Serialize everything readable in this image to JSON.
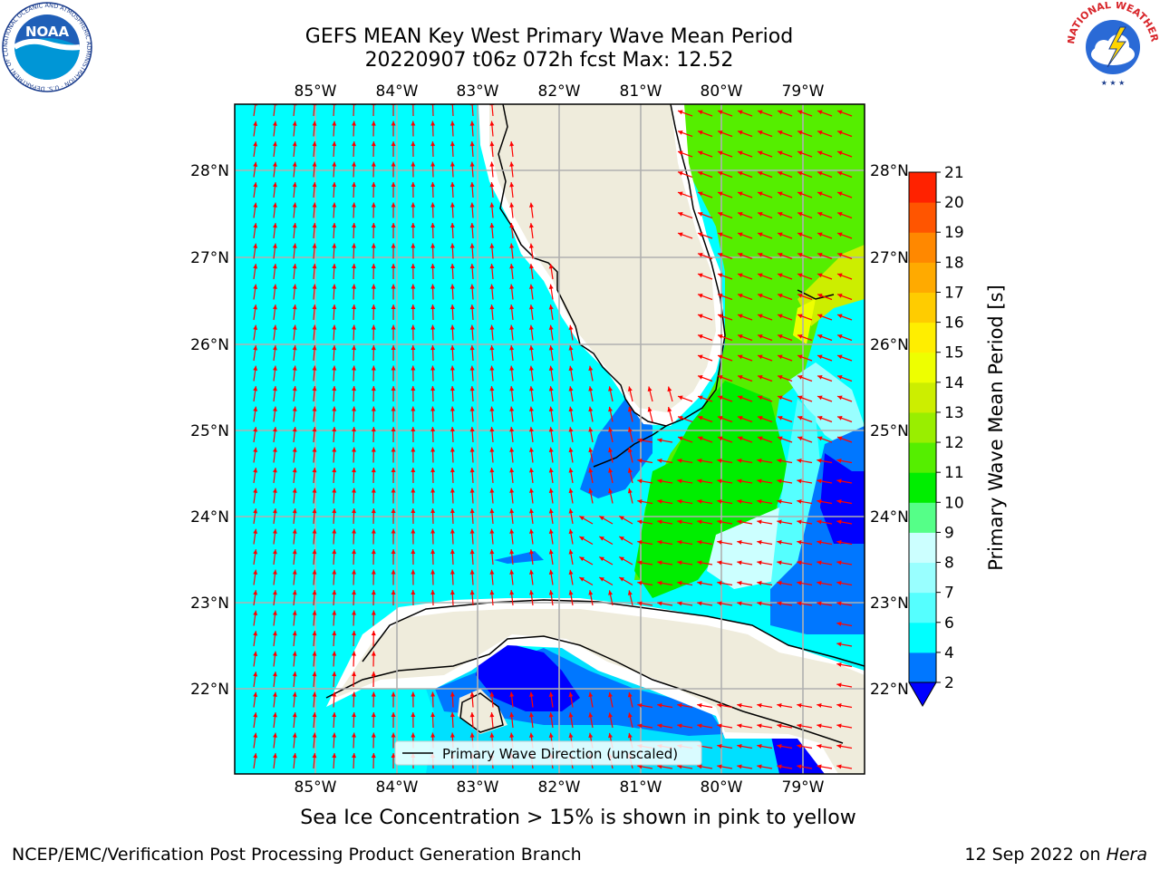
{
  "header": {
    "title_line1": "GEFS MEAN Key West Primary Wave Mean Period",
    "title_line2": "20220907 t06z 072h fcst   Max: 12.52"
  },
  "logos": {
    "noaa_text": "NOAA",
    "noaa_ring": "NATIONAL OCEANIC AND ATMOSPHERIC ADMINISTRATION · U.S. DEPARTMENT OF COMMERCE ·",
    "nws_ring": "NATIONAL WEATHER SERVICE"
  },
  "map": {
    "lon_labels": [
      "85°W",
      "84°W",
      "83°W",
      "82°W",
      "81°W",
      "80°W",
      "79°W"
    ],
    "lat_labels": [
      "28°N",
      "27°N",
      "26°N",
      "25°N",
      "24°N",
      "23°N",
      "22°N"
    ],
    "legend_label": "Primary Wave Direction (unscaled)",
    "arrow_color": "#ff0000",
    "land_color": "#efecdc",
    "ocean_base_color": "#00ffff"
  },
  "colorbar": {
    "label": "Primary Wave Mean Period [s]",
    "ticks": [
      "2",
      "4",
      "6",
      "7",
      "8",
      "9",
      "10",
      "11",
      "12",
      "13",
      "14",
      "15",
      "16",
      "17",
      "18",
      "19",
      "20",
      "21"
    ],
    "colors": [
      "#0077ff",
      "#00ffff",
      "#55ffff",
      "#99ffff",
      "#ccffff",
      "#55ff88",
      "#00ee00",
      "#55ee00",
      "#99ee00",
      "#ccee00",
      "#eeff00",
      "#ffee00",
      "#ffcc00",
      "#ffaa00",
      "#ff8800",
      "#ff5500",
      "#ff2200"
    ],
    "under_color": "#0000ff"
  },
  "caption": "Sea Ice Concentration > 15% is shown in pink to yellow",
  "footer": {
    "left": "NCEP/EMC/Verification Post Processing Product Generation Branch",
    "date": "12 Sep 2022 on ",
    "machine": "Hera"
  }
}
